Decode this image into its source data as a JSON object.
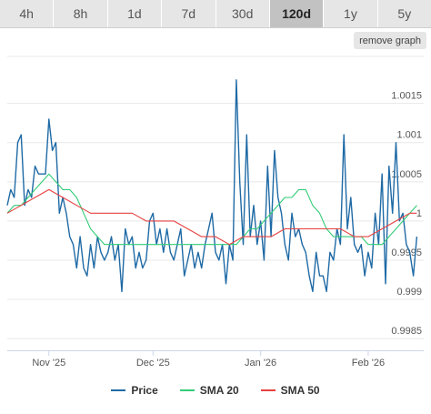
{
  "tabs": [
    {
      "label": "4h",
      "active": false
    },
    {
      "label": "8h",
      "active": false
    },
    {
      "label": "1d",
      "active": false
    },
    {
      "label": "7d",
      "active": false
    },
    {
      "label": "30d",
      "active": false
    },
    {
      "label": "120d",
      "active": true
    },
    {
      "label": "1y",
      "active": false
    },
    {
      "label": "5y",
      "active": false
    }
  ],
  "remove_graph_label": "remove graph",
  "legend": [
    {
      "label": "Price",
      "color": "#1f6aa5"
    },
    {
      "label": "SMA 20",
      "color": "#33cc77"
    },
    {
      "label": "SMA 50",
      "color": "#e64040"
    }
  ],
  "chart_data": {
    "type": "line",
    "title": "",
    "xlabel": "",
    "ylabel": "",
    "ylim": [
      0.99835,
      1.0021
    ],
    "yticks": [
      0.9985,
      0.999,
      0.9995,
      1,
      1.0005,
      1.001,
      1.0015
    ],
    "ytick_labels": [
      "0.9985",
      "0.999",
      "0.9995",
      "1",
      "1.0005",
      "1.001",
      "1.0015"
    ],
    "xlim": [
      "2025-10-20",
      "2026-02-17"
    ],
    "xticks": [
      "2025-11-01",
      "2025-12-01",
      "2026-01-01",
      "2026-02-01"
    ],
    "xtick_labels": [
      "Nov '25",
      "Dec '25",
      "Jan '26",
      "Feb '26"
    ],
    "grid": true,
    "legend_position": "bottom",
    "series": [
      {
        "name": "Price",
        "color": "#1f6aa5",
        "points": [
          [
            "2025-10-20",
            1.0002
          ],
          [
            "2025-10-21",
            1.0004
          ],
          [
            "2025-10-22",
            1.0003
          ],
          [
            "2025-10-23",
            1.001
          ],
          [
            "2025-10-24",
            1.0011
          ],
          [
            "2025-10-25",
            1.0002
          ],
          [
            "2025-10-26",
            1.0004
          ],
          [
            "2025-10-27",
            1.0003
          ],
          [
            "2025-10-28",
            1.0007
          ],
          [
            "2025-10-29",
            1.0006
          ],
          [
            "2025-10-30",
            1.0006
          ],
          [
            "2025-10-31",
            1.0006
          ],
          [
            "2025-11-01",
            1.0013
          ],
          [
            "2025-11-02",
            1.0009
          ],
          [
            "2025-11-03",
            1.001
          ],
          [
            "2025-11-04",
            1.0001
          ],
          [
            "2025-11-05",
            1.0003
          ],
          [
            "2025-11-06",
            1.0001
          ],
          [
            "2025-11-07",
            0.9998
          ],
          [
            "2025-11-08",
            0.9997
          ],
          [
            "2025-11-09",
            0.9994
          ],
          [
            "2025-11-10",
            0.9998
          ],
          [
            "2025-11-11",
            0.9994
          ],
          [
            "2025-11-12",
            0.9993
          ],
          [
            "2025-11-13",
            0.9997
          ],
          [
            "2025-11-14",
            0.9994
          ],
          [
            "2025-11-15",
            0.9998
          ],
          [
            "2025-11-16",
            0.9996
          ],
          [
            "2025-11-17",
            0.9995
          ],
          [
            "2025-11-18",
            0.9996
          ],
          [
            "2025-11-19",
            0.9998
          ],
          [
            "2025-11-20",
            0.9995
          ],
          [
            "2025-11-21",
            0.9997
          ],
          [
            "2025-11-22",
            0.9991
          ],
          [
            "2025-11-23",
            0.9999
          ],
          [
            "2025-11-24",
            0.9997
          ],
          [
            "2025-11-25",
            0.9998
          ],
          [
            "2025-11-26",
            0.9994
          ],
          [
            "2025-11-27",
            0.9996
          ],
          [
            "2025-11-28",
            0.9994
          ],
          [
            "2025-11-29",
            0.9995
          ],
          [
            "2025-11-30",
            1.0
          ],
          [
            "2025-12-01",
            1.0001
          ],
          [
            "2025-12-02",
            0.9997
          ],
          [
            "2025-12-03",
            0.9999
          ],
          [
            "2025-12-04",
            0.9996
          ],
          [
            "2025-12-05",
            0.9999
          ],
          [
            "2025-12-06",
            0.9996
          ],
          [
            "2025-12-07",
            0.9995
          ],
          [
            "2025-12-08",
            0.9997
          ],
          [
            "2025-12-09",
            0.9999
          ],
          [
            "2025-12-10",
            0.9993
          ],
          [
            "2025-12-11",
            0.9995
          ],
          [
            "2025-12-12",
            0.9997
          ],
          [
            "2025-12-13",
            0.9994
          ],
          [
            "2025-12-14",
            0.9996
          ],
          [
            "2025-12-15",
            0.9994
          ],
          [
            "2025-12-16",
            0.9997
          ],
          [
            "2025-12-17",
            0.9999
          ],
          [
            "2025-12-18",
            1.0001
          ],
          [
            "2025-12-19",
            0.9996
          ],
          [
            "2025-12-20",
            0.9995
          ],
          [
            "2025-12-21",
            0.9997
          ],
          [
            "2025-12-22",
            0.9992
          ],
          [
            "2025-12-23",
            0.9997
          ],
          [
            "2025-12-24",
            0.9995
          ],
          [
            "2025-12-25",
            1.0018
          ],
          [
            "2025-12-26",
            1.0005
          ],
          [
            "2025-12-27",
            0.9997
          ],
          [
            "2025-12-28",
            1.0011
          ],
          [
            "2025-12-29",
            0.9998
          ],
          [
            "2025-12-30",
            1.0002
          ],
          [
            "2025-12-31",
            0.9997
          ],
          [
            "2026-01-01",
            1.0
          ],
          [
            "2026-01-02",
            0.9995
          ],
          [
            "2026-01-03",
            1.0007
          ],
          [
            "2026-01-04",
            0.9998
          ],
          [
            "2026-01-05",
            1.0009
          ],
          [
            "2026-01-06",
            1.0003
          ],
          [
            "2026-01-07",
            1.0001
          ],
          [
            "2026-01-08",
            0.9997
          ],
          [
            "2026-01-09",
            0.9995
          ],
          [
            "2026-01-10",
            1.0001
          ],
          [
            "2026-01-11",
            0.9998
          ],
          [
            "2026-01-12",
            0.9999
          ],
          [
            "2026-01-13",
            0.9997
          ],
          [
            "2026-01-14",
            0.9996
          ],
          [
            "2026-01-15",
            0.9993
          ],
          [
            "2026-01-16",
            0.9991
          ],
          [
            "2026-01-17",
            0.9996
          ],
          [
            "2026-01-18",
            0.9993
          ],
          [
            "2026-01-19",
            0.9993
          ],
          [
            "2026-01-20",
            0.9991
          ],
          [
            "2026-01-21",
            0.9996
          ],
          [
            "2026-01-22",
            0.9995
          ],
          [
            "2026-01-23",
            0.9999
          ],
          [
            "2026-01-24",
            0.9997
          ],
          [
            "2026-01-25",
            1.0011
          ],
          [
            "2026-01-26",
            0.9999
          ],
          [
            "2026-01-27",
            1.0003
          ],
          [
            "2026-01-28",
            0.9997
          ],
          [
            "2026-01-29",
            0.9996
          ],
          [
            "2026-01-30",
            0.9997
          ],
          [
            "2026-01-31",
            0.9993
          ],
          [
            "2026-02-01",
            0.9996
          ],
          [
            "2026-02-02",
            0.9994
          ],
          [
            "2026-02-03",
            1.0001
          ],
          [
            "2026-02-04",
            0.9997
          ],
          [
            "2026-02-05",
            1.0006
          ],
          [
            "2026-02-06",
            0.9992
          ],
          [
            "2026-02-07",
            1.0007
          ],
          [
            "2026-02-08",
            1.0001
          ],
          [
            "2026-02-09",
            1.001
          ],
          [
            "2026-02-10",
            1.0
          ],
          [
            "2026-02-11",
            1.0001
          ],
          [
            "2026-02-12",
            0.9997
          ],
          [
            "2026-02-13",
            0.9996
          ],
          [
            "2026-02-14",
            0.9993
          ],
          [
            "2026-02-15",
            0.9998
          ]
        ]
      },
      {
        "name": "SMA 20",
        "color": "#33cc77",
        "points": [
          [
            "2025-10-20",
            1.0001
          ],
          [
            "2025-10-22",
            1.0002
          ],
          [
            "2025-10-24",
            1.0002
          ],
          [
            "2025-10-26",
            1.0003
          ],
          [
            "2025-10-28",
            1.0004
          ],
          [
            "2025-10-30",
            1.0005
          ],
          [
            "2025-11-01",
            1.0006
          ],
          [
            "2025-11-03",
            1.0005
          ],
          [
            "2025-11-05",
            1.0004
          ],
          [
            "2025-11-07",
            1.0004
          ],
          [
            "2025-11-09",
            1.0003
          ],
          [
            "2025-11-11",
            1.0001
          ],
          [
            "2025-11-13",
            0.9999
          ],
          [
            "2025-11-15",
            0.9998
          ],
          [
            "2025-11-17",
            0.9997
          ],
          [
            "2025-11-19",
            0.9997
          ],
          [
            "2025-11-21",
            0.9997
          ],
          [
            "2025-11-23",
            0.9997
          ],
          [
            "2025-11-25",
            0.9997
          ],
          [
            "2025-11-27",
            0.9997
          ],
          [
            "2025-11-29",
            0.9997
          ],
          [
            "2025-12-01",
            0.9997
          ],
          [
            "2025-12-03",
            0.9997
          ],
          [
            "2025-12-05",
            0.9997
          ],
          [
            "2025-12-07",
            0.9997
          ],
          [
            "2025-12-09",
            0.9997
          ],
          [
            "2025-12-11",
            0.9997
          ],
          [
            "2025-12-13",
            0.9997
          ],
          [
            "2025-12-15",
            0.9997
          ],
          [
            "2025-12-17",
            0.9997
          ],
          [
            "2025-12-19",
            0.9997
          ],
          [
            "2025-12-21",
            0.9997
          ],
          [
            "2025-12-23",
            0.9997
          ],
          [
            "2025-12-25",
            0.9997
          ],
          [
            "2025-12-27",
            0.9998
          ],
          [
            "2025-12-29",
            0.9999
          ],
          [
            "2025-12-31",
            0.9999
          ],
          [
            "2026-01-02",
            1.0
          ],
          [
            "2026-01-04",
            1.0001
          ],
          [
            "2026-01-06",
            1.0002
          ],
          [
            "2026-01-08",
            1.0003
          ],
          [
            "2026-01-10",
            1.0003
          ],
          [
            "2026-01-12",
            1.0004
          ],
          [
            "2026-01-14",
            1.0004
          ],
          [
            "2026-01-16",
            1.0002
          ],
          [
            "2026-01-18",
            1.0001
          ],
          [
            "2026-01-20",
            0.9999
          ],
          [
            "2026-01-22",
            0.9998
          ],
          [
            "2026-01-24",
            0.9998
          ],
          [
            "2026-01-26",
            0.9998
          ],
          [
            "2026-01-28",
            0.9998
          ],
          [
            "2026-01-30",
            0.9998
          ],
          [
            "2026-02-01",
            0.9997
          ],
          [
            "2026-02-03",
            0.9997
          ],
          [
            "2026-02-05",
            0.9997
          ],
          [
            "2026-02-07",
            0.9998
          ],
          [
            "2026-02-09",
            0.9999
          ],
          [
            "2026-02-11",
            1.0
          ],
          [
            "2026-02-13",
            1.0001
          ],
          [
            "2026-02-15",
            1.0002
          ]
        ]
      },
      {
        "name": "SMA 50",
        "color": "#e64040",
        "points": [
          [
            "2025-10-20",
            1.0001
          ],
          [
            "2025-10-24",
            1.0002
          ],
          [
            "2025-10-28",
            1.0003
          ],
          [
            "2025-11-01",
            1.0004
          ],
          [
            "2025-11-05",
            1.0003
          ],
          [
            "2025-11-09",
            1.0002
          ],
          [
            "2025-11-13",
            1.0001
          ],
          [
            "2025-11-17",
            1.0001
          ],
          [
            "2025-11-21",
            1.0001
          ],
          [
            "2025-11-25",
            1.0001
          ],
          [
            "2025-11-29",
            1.0
          ],
          [
            "2025-12-03",
            1.0
          ],
          [
            "2025-12-07",
            1.0
          ],
          [
            "2025-12-11",
            0.9999
          ],
          [
            "2025-12-15",
            0.9998
          ],
          [
            "2025-12-19",
            0.9998
          ],
          [
            "2025-12-23",
            0.9997
          ],
          [
            "2025-12-27",
            0.9998
          ],
          [
            "2025-12-31",
            0.9998
          ],
          [
            "2026-01-04",
            0.9998
          ],
          [
            "2026-01-08",
            0.9999
          ],
          [
            "2026-01-12",
            0.9999
          ],
          [
            "2026-01-16",
            0.9999
          ],
          [
            "2026-01-20",
            0.9999
          ],
          [
            "2026-01-24",
            0.9999
          ],
          [
            "2026-01-28",
            0.9998
          ],
          [
            "2026-02-01",
            0.9998
          ],
          [
            "2026-02-05",
            0.9999
          ],
          [
            "2026-02-09",
            1.0
          ],
          [
            "2026-02-13",
            1.0001
          ],
          [
            "2026-02-15",
            1.0001
          ]
        ]
      }
    ]
  }
}
